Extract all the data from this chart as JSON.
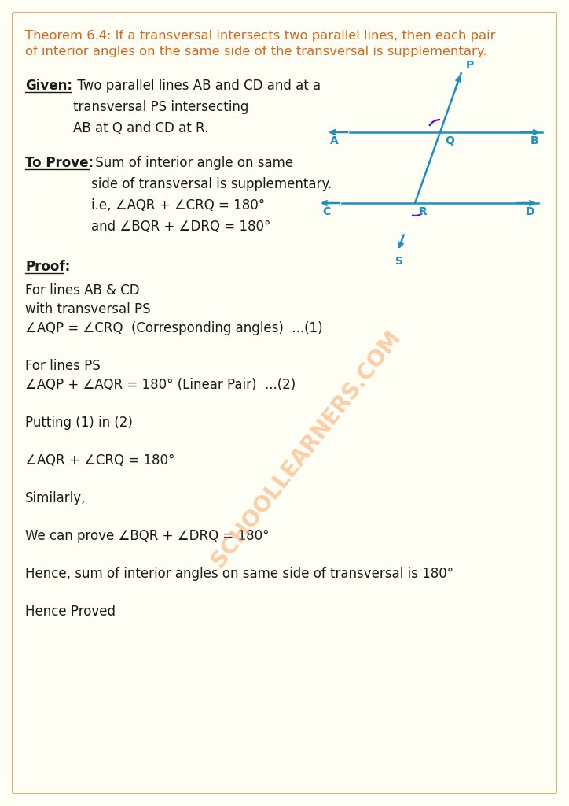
{
  "bg_color": "#fffef5",
  "border_color": "#c8b890",
  "theorem_color": "#d2691e",
  "text_color": "#1a1a1a",
  "diagram_color": "#1a8fc1",
  "arc_color": "#6a0dad",
  "watermark_color": "#f5a05a",
  "theorem_text_line1": "Theorem 6.4: If a transversal intersects two parallel lines, then each pair",
  "theorem_text_line2": "of interior angles on the same side of the transversal is supplementary.",
  "given_label": "Given:",
  "given_text": " Two parallel lines AB and CD and at a\ntransversal PS intersecting\nAB at Q and CD at R.",
  "toprove_label": "To Prove:",
  "toprove_text": " Sum of interior angle on same\nside of transversal is supplementary.\ni.e, ∠AQR + ∠CRQ = 180°\nand ∠BQR + ∠DRQ = 180°",
  "proof_label": "Proof:",
  "proof_lines": [
    "For lines AB & CD",
    "with transversal PS",
    "∠AQP = ∠CRQ  (Corresponding angles)  ...(1)",
    "",
    "For lines PS",
    "∠AQP + ∠AQR = 180° (Linear Pair)  ...(2)",
    "",
    "Putting (1) in (2)",
    "",
    "∠AQR + ∠CRQ = 180°",
    "",
    "Similarly,",
    "",
    "We can prove ∠BQR + ∠DRQ = 180°",
    "",
    "Hence, sum of interior angles on same side of transversal is 180°",
    "",
    "Hence Proved"
  ],
  "watermark": "SCHOOLLEARNERS.COM",
  "fig_width": 7.24,
  "fig_height": 10.24,
  "dpi": 100
}
